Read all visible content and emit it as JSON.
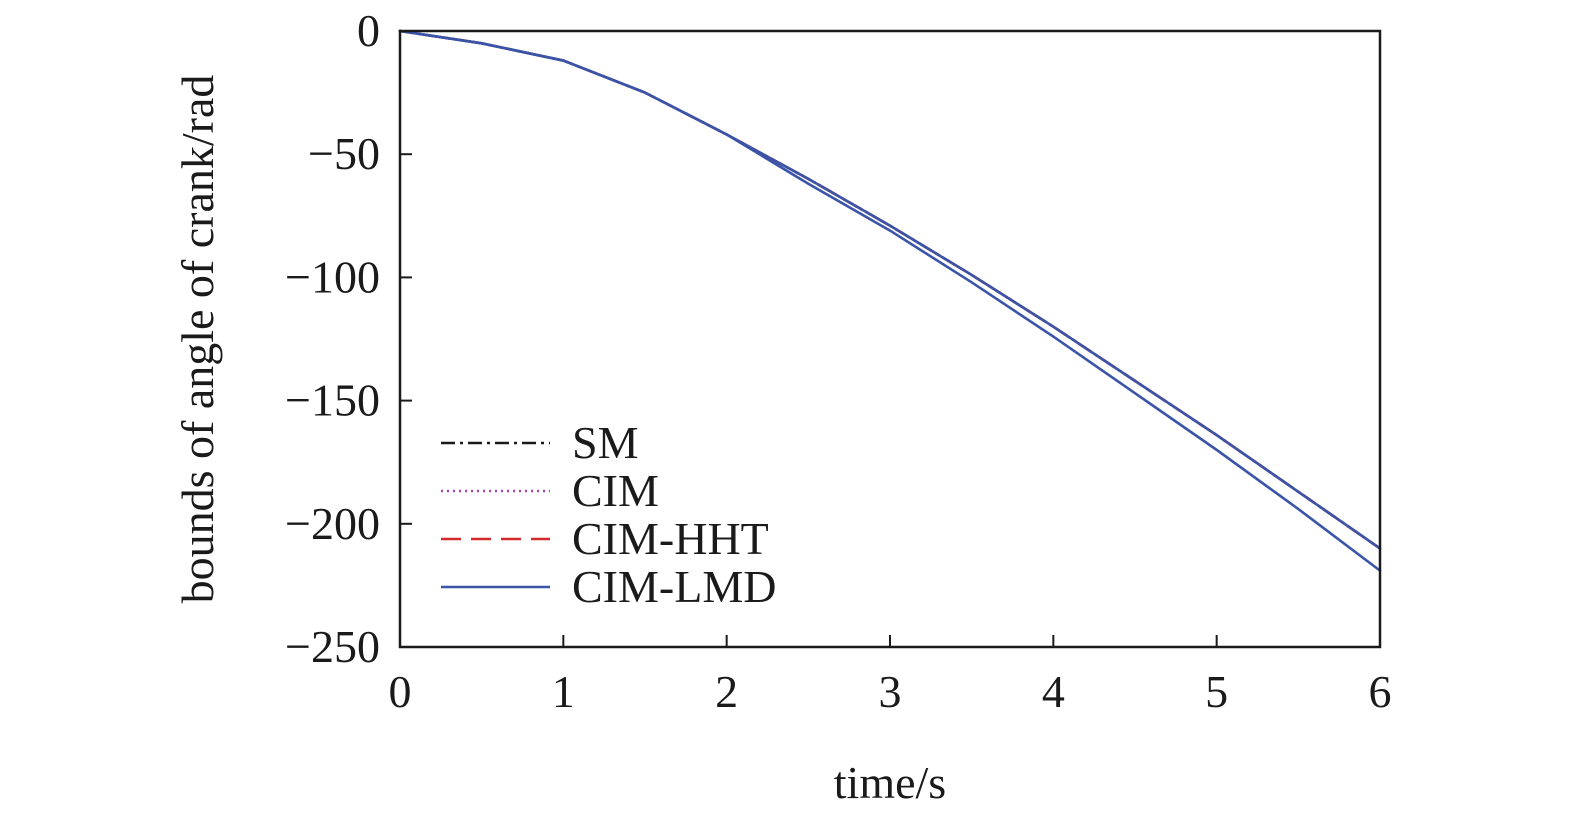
{
  "chart_data": {
    "type": "line",
    "xlabel": "time/s",
    "ylabel": "bounds of angle of crank/rad",
    "xlim": [
      0,
      6
    ],
    "ylim": [
      -250,
      0
    ],
    "xticks": [
      0,
      1,
      2,
      3,
      4,
      5,
      6
    ],
    "yticks": [
      0,
      -50,
      -100,
      -150,
      -200,
      -250
    ],
    "xtick_labels": [
      "0",
      "1",
      "2",
      "3",
      "4",
      "5",
      "6"
    ],
    "ytick_labels": [
      "0",
      "−50",
      "−100",
      "−150",
      "−200",
      "−250"
    ],
    "grid": false,
    "legend_position": "lower-left",
    "x": [
      0,
      0.5,
      1.0,
      1.5,
      2.0,
      2.5,
      3.0,
      3.5,
      4.0,
      4.5,
      5.0,
      5.5,
      6.0
    ],
    "series": [
      {
        "name": "SM",
        "color": "#1a1a1a",
        "dash": "dashdot",
        "values": [
          0,
          -5,
          -12,
          -25,
          -42,
          -60,
          -79,
          -99,
          -120,
          -142,
          -164,
          -187,
          -210
        ]
      },
      {
        "name": "CIM",
        "color": "#b040b0",
        "dash": "dotted",
        "values": [
          0,
          -5,
          -12,
          -25,
          -42,
          -60,
          -79,
          -99,
          -120,
          -142,
          -164,
          -187,
          -210
        ]
      },
      {
        "name": "CIM-HHT",
        "color": "#d42a2a",
        "dash": "dashed",
        "values": [
          0,
          -5,
          -12,
          -25,
          -42,
          -60,
          -79,
          -99,
          -120,
          -142,
          -164,
          -187,
          -210
        ]
      },
      {
        "name": "CIM-LMD",
        "color": "#3a54a8",
        "dash": "solid",
        "upper": [
          0,
          -5,
          -12,
          -25,
          -42,
          -60,
          -79,
          -99,
          -120,
          -142,
          -164,
          -187,
          -210
        ],
        "lower": [
          0,
          -5,
          -12,
          -25,
          -42,
          -62,
          -81,
          -102,
          -124,
          -147,
          -170,
          -194,
          -219
        ]
      }
    ]
  }
}
